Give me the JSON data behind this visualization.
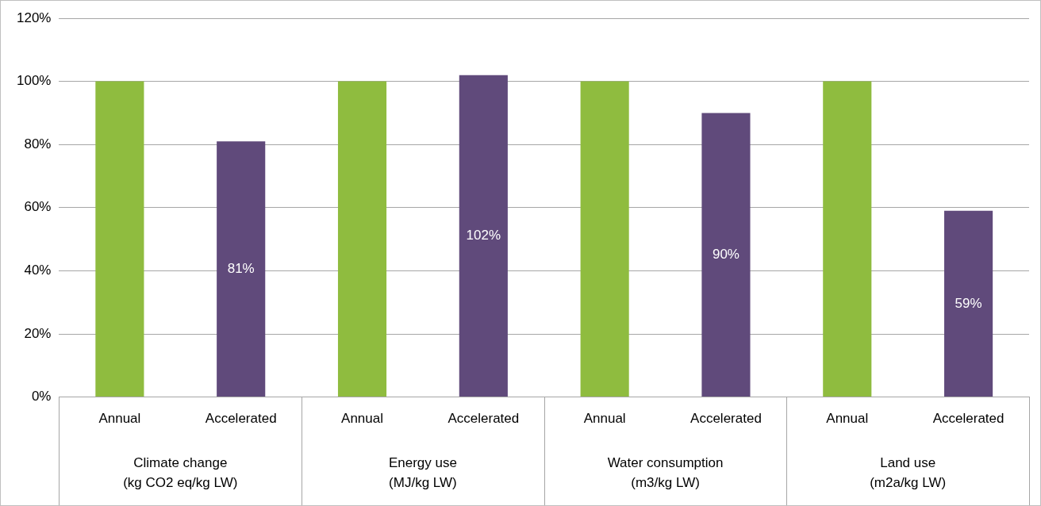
{
  "chart_data": {
    "type": "bar",
    "categories": [
      "Annual",
      "Accelerated",
      "Annual",
      "Accelerated",
      "Annual",
      "Accelerated",
      "Annual",
      "Accelerated"
    ],
    "values": [
      100,
      81,
      100,
      102,
      100,
      90,
      100,
      59
    ],
    "colors": [
      "#8fbc3f",
      "#604a7b",
      "#8fbc3f",
      "#604a7b",
      "#8fbc3f",
      "#604a7b",
      "#8fbc3f",
      "#604a7b"
    ],
    "value_labels": [
      null,
      "81%",
      null,
      "102%",
      null,
      "90%",
      null,
      "59%"
    ],
    "ylim": [
      0,
      120
    ],
    "yticks": [
      {
        "value": 0,
        "label": "0%"
      },
      {
        "value": 20,
        "label": "20%"
      },
      {
        "value": 40,
        "label": "40%"
      },
      {
        "value": 60,
        "label": "60%"
      },
      {
        "value": 80,
        "label": "80%"
      },
      {
        "value": 100,
        "label": "100%"
      },
      {
        "value": 120,
        "label": "120%"
      }
    ],
    "grid": "y",
    "legend": false,
    "annotations": [
      "Climate change\n(kg CO2 eq/kg LW)",
      "Energy use\n(MJ/kg LW)",
      "Water consumption\n(m3/kg LW)",
      "Land use\n(m2a/kg LW)"
    ]
  }
}
